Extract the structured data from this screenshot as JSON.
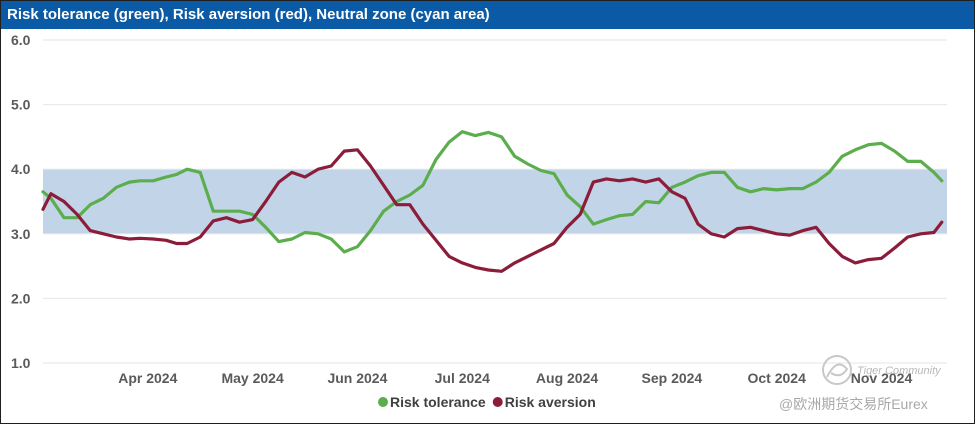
{
  "title": "Risk tolerance (green), Risk aversion (red), Neutral zone (cyan area)",
  "chart_data": {
    "type": "line",
    "title": "Risk tolerance (green), Risk aversion (red), Neutral zone (cyan area)",
    "xlabel": "",
    "ylabel": "",
    "ylim": [
      1.0,
      6.0
    ],
    "yticks": [
      "1.0",
      "2.0",
      "3.0",
      "4.0",
      "5.0",
      "6.0"
    ],
    "x_tick_labels": [
      "Apr 2024",
      "May 2024",
      "Jun 2024",
      "Jul 2024",
      "Aug 2024",
      "Sep 2024",
      "Oct 2024",
      "Nov 2024"
    ],
    "x_tick_index": [
      4,
      8,
      12,
      16,
      20,
      24,
      28,
      32
    ],
    "x_index_range": [
      0,
      34.5
    ],
    "neutral_zone": {
      "low": 3.0,
      "high": 4.0,
      "color": "#c2d5e8"
    },
    "grid": true,
    "legend_position": "bottom-center",
    "series": [
      {
        "name": "Risk tolerance",
        "color": "#5cad4d",
        "x": [
          0,
          0.3,
          0.8,
          1.3,
          1.8,
          2.3,
          2.8,
          3.3,
          3.7,
          4.2,
          4.7,
          5.1,
          5.5,
          6.0,
          6.5,
          7.0,
          7.5,
          8.0,
          8.5,
          9.0,
          9.5,
          10.0,
          10.5,
          11.0,
          11.5,
          12.0,
          12.5,
          13.0,
          13.5,
          14.0,
          14.5,
          15.0,
          15.5,
          16.0,
          16.5,
          17.0,
          17.5,
          18.0,
          18.5,
          19.0,
          19.5,
          20.0,
          20.5,
          21.0,
          21.5,
          22.0,
          22.5,
          23.0,
          23.5,
          24.0,
          24.5,
          25.0,
          25.5,
          26.0,
          26.5,
          27.0,
          27.5,
          28.0,
          28.5,
          29.0,
          29.5,
          30.0,
          30.5,
          31.0,
          31.5,
          32.0,
          32.5,
          33.0,
          33.5,
          34.0,
          34.3
        ],
        "values": [
          3.65,
          3.55,
          3.25,
          3.25,
          3.45,
          3.55,
          3.72,
          3.8,
          3.82,
          3.82,
          3.88,
          3.92,
          4.0,
          3.95,
          3.35,
          3.35,
          3.35,
          3.3,
          3.1,
          2.88,
          2.92,
          3.02,
          3.0,
          2.92,
          2.72,
          2.8,
          3.05,
          3.35,
          3.5,
          3.6,
          3.75,
          4.15,
          4.42,
          4.58,
          4.52,
          4.57,
          4.5,
          4.2,
          4.08,
          3.98,
          3.93,
          3.6,
          3.42,
          3.15,
          3.22,
          3.28,
          3.3,
          3.5,
          3.48,
          3.72,
          3.8,
          3.9,
          3.95,
          3.95,
          3.72,
          3.65,
          3.7,
          3.68,
          3.7,
          3.7,
          3.8,
          3.95,
          4.2,
          4.3,
          4.38,
          4.4,
          4.28,
          4.12,
          4.12,
          3.95,
          3.82
        ]
      },
      {
        "name": "Risk aversion",
        "color": "#8b1d3a",
        "x": [
          0,
          0.3,
          0.8,
          1.3,
          1.8,
          2.3,
          2.8,
          3.3,
          3.7,
          4.2,
          4.7,
          5.1,
          5.5,
          6.0,
          6.5,
          7.0,
          7.5,
          8.0,
          8.5,
          9.0,
          9.5,
          10.0,
          10.5,
          11.0,
          11.5,
          12.0,
          12.5,
          13.0,
          13.5,
          14.0,
          14.5,
          15.0,
          15.5,
          16.0,
          16.5,
          17.0,
          17.5,
          18.0,
          18.5,
          19.0,
          19.5,
          20.0,
          20.5,
          21.0,
          21.5,
          22.0,
          22.5,
          23.0,
          23.5,
          24.0,
          24.5,
          25.0,
          25.5,
          26.0,
          26.5,
          27.0,
          27.5,
          28.0,
          28.5,
          29.0,
          29.5,
          30.0,
          30.5,
          31.0,
          31.5,
          32.0,
          32.5,
          33.0,
          33.5,
          34.0,
          34.3
        ],
        "values": [
          3.38,
          3.62,
          3.5,
          3.3,
          3.05,
          3.0,
          2.95,
          2.92,
          2.93,
          2.92,
          2.9,
          2.85,
          2.85,
          2.95,
          3.2,
          3.25,
          3.18,
          3.22,
          3.5,
          3.8,
          3.95,
          3.88,
          4.0,
          4.05,
          4.28,
          4.3,
          4.05,
          3.75,
          3.45,
          3.45,
          3.15,
          2.9,
          2.65,
          2.55,
          2.48,
          2.44,
          2.42,
          2.55,
          2.65,
          2.75,
          2.85,
          3.1,
          3.3,
          3.8,
          3.85,
          3.82,
          3.85,
          3.8,
          3.85,
          3.65,
          3.55,
          3.15,
          3.0,
          2.95,
          3.08,
          3.1,
          3.05,
          3.0,
          2.98,
          3.05,
          3.1,
          2.85,
          2.65,
          2.55,
          2.6,
          2.62,
          2.78,
          2.95,
          3.0,
          3.02,
          3.18
        ]
      }
    ]
  },
  "watermark": {
    "line1": "Tiger Community",
    "line2": "@欧洲期货交易所Eurex"
  }
}
